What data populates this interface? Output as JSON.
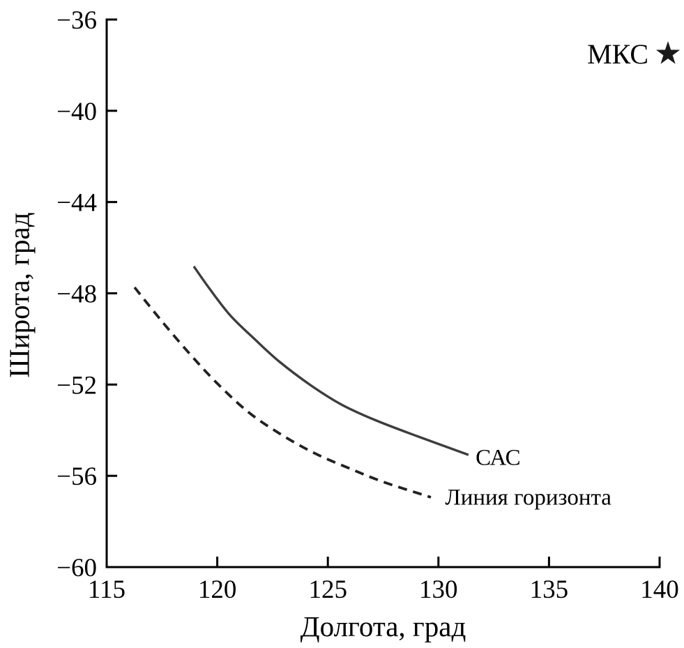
{
  "chart_data": {
    "type": "line",
    "title": "",
    "xlabel": "Долгота, град",
    "ylabel": "Широта, град",
    "xlim": [
      115,
      140
    ],
    "ylim": [
      -60,
      -36
    ],
    "x_ticks": [
      115,
      120,
      125,
      130,
      135,
      140
    ],
    "x_tick_labels": [
      "115",
      "120",
      "125",
      "130",
      "135",
      "140"
    ],
    "y_ticks": [
      -36,
      -40,
      -44,
      -48,
      -52,
      -56,
      -60
    ],
    "y_tick_labels": [
      "−36",
      "−40",
      "−44",
      "−48",
      "−52",
      "−56",
      "−60"
    ],
    "grid": false,
    "legend_position": "inline-labels",
    "axis_color": "#000000",
    "text_color": "#000000",
    "series": [
      {
        "name": "САС",
        "line_style": "solid",
        "color": "#3d3d3d",
        "stroke_width": 3.4,
        "label_anchor": [
          131.68,
          -55.15
        ],
        "points": [
          [
            118.94,
            -46.82
          ],
          [
            119.63,
            -47.77
          ],
          [
            120.58,
            -48.96
          ],
          [
            121.68,
            -50.0
          ],
          [
            122.79,
            -50.98
          ],
          [
            124.21,
            -52.02
          ],
          [
            125.62,
            -52.88
          ],
          [
            127.2,
            -53.58
          ],
          [
            129.09,
            -54.28
          ],
          [
            131.36,
            -55.08
          ]
        ]
      },
      {
        "name": "Линия горизонта",
        "line_style": "dashed",
        "color": "#222222",
        "stroke_width": 3.8,
        "label_anchor": [
          130.3,
          -56.9
        ],
        "points": [
          [
            116.26,
            -47.74
          ],
          [
            117.43,
            -49.15
          ],
          [
            118.69,
            -50.58
          ],
          [
            119.95,
            -51.9
          ],
          [
            121.37,
            -53.18
          ],
          [
            122.79,
            -54.13
          ],
          [
            124.36,
            -54.99
          ],
          [
            125.94,
            -55.66
          ],
          [
            127.52,
            -56.27
          ],
          [
            129.66,
            -56.94
          ]
        ]
      }
    ],
    "markers": [
      {
        "label": "МКС",
        "symbol": "star",
        "lon": 140.38,
        "lat": -37.5,
        "color": "#1a1a1a"
      }
    ]
  }
}
